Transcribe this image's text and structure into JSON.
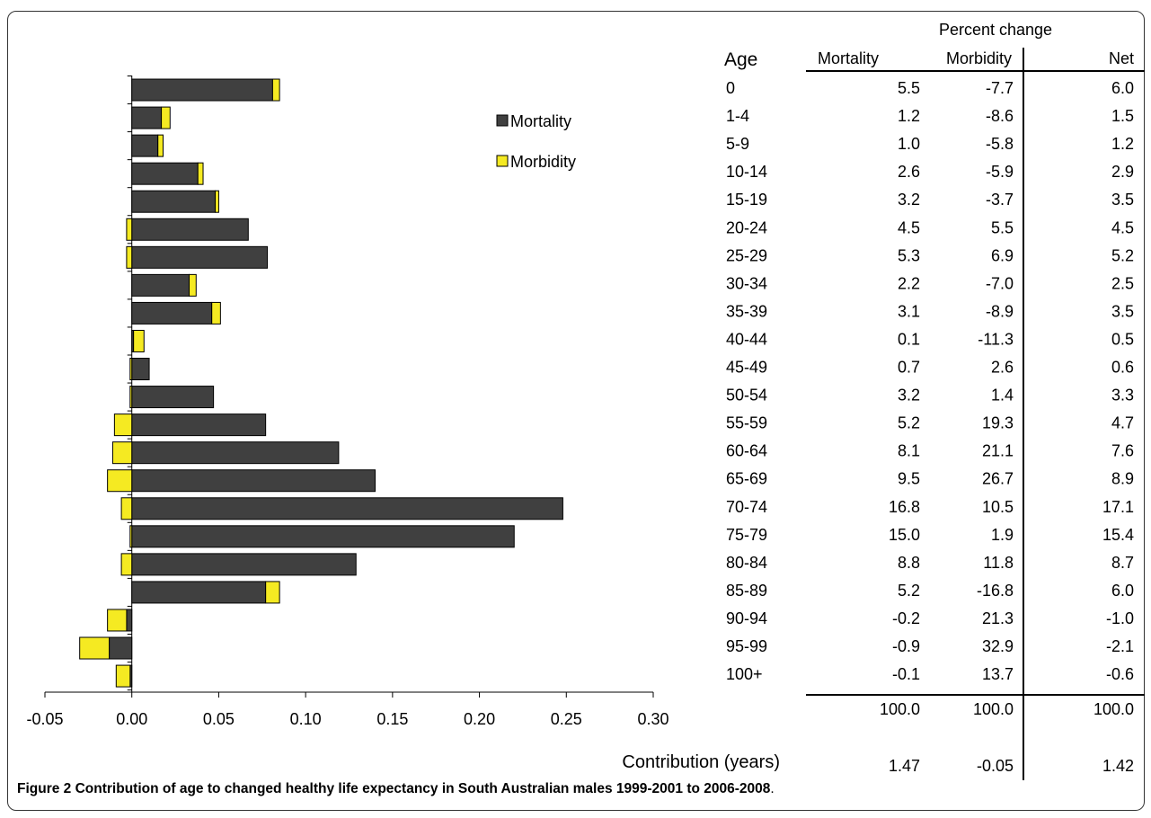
{
  "caption": {
    "label": "Figure 2",
    "text": "Contribution of age to changed healthy life expectancy in South Australian males 1999-2001 to 2006-2008",
    "suffix": "."
  },
  "colors": {
    "mortality": "#404040",
    "morbidity": "#f5ea22",
    "stroke": "#000000"
  },
  "chart_data": {
    "type": "bar",
    "orientation": "horizontal",
    "stacked": true,
    "title": "",
    "xlabel": "Contribution (years)",
    "xlim": [
      -0.05,
      0.3
    ],
    "xticks": [
      "-0.05",
      "0.00",
      "0.05",
      "0.10",
      "0.15",
      "0.20",
      "0.25",
      "0.30"
    ],
    "categories": [
      "0",
      "1-4",
      "5-9",
      "10-14",
      "15-19",
      "20-24",
      "25-29",
      "30-34",
      "35-39",
      "40-44",
      "45-49",
      "50-54",
      "55-59",
      "60-64",
      "65-69",
      "70-74",
      "75-79",
      "80-84",
      "85-89",
      "90-94",
      "95-99",
      "100+"
    ],
    "series": [
      {
        "name": "Mortality",
        "values": [
          0.081,
          0.017,
          0.015,
          0.038,
          0.048,
          0.067,
          0.078,
          0.033,
          0.046,
          0.001,
          0.01,
          0.047,
          0.077,
          0.119,
          0.14,
          0.248,
          0.22,
          0.129,
          0.077,
          -0.003,
          -0.013,
          -0.001
        ]
      },
      {
        "name": "Morbidity",
        "values": [
          0.004,
          0.005,
          0.003,
          0.003,
          0.002,
          -0.003,
          -0.003,
          0.004,
          0.005,
          0.006,
          -0.001,
          -0.001,
          -0.01,
          -0.011,
          -0.014,
          -0.006,
          -0.001,
          -0.006,
          0.008,
          -0.011,
          -0.017,
          -0.008
        ]
      }
    ],
    "legend": {
      "position": "top-right",
      "items": [
        "Mortality",
        "Morbidity"
      ]
    },
    "table": {
      "header_group": "Percent change",
      "age_header": "Age",
      "columns": [
        "Mortality",
        "Morbidity",
        "Net"
      ],
      "rows": [
        [
          "0",
          "5.5",
          "-7.7",
          "6.0"
        ],
        [
          "1-4",
          "1.2",
          "-8.6",
          "1.5"
        ],
        [
          "5-9",
          "1.0",
          "-5.8",
          "1.2"
        ],
        [
          "10-14",
          "2.6",
          "-5.9",
          "2.9"
        ],
        [
          "15-19",
          "3.2",
          "-3.7",
          "3.5"
        ],
        [
          "20-24",
          "4.5",
          "5.5",
          "4.5"
        ],
        [
          "25-29",
          "5.3",
          "6.9",
          "5.2"
        ],
        [
          "30-34",
          "2.2",
          "-7.0",
          "2.5"
        ],
        [
          "35-39",
          "3.1",
          "-8.9",
          "3.5"
        ],
        [
          "40-44",
          "0.1",
          "-11.3",
          "0.5"
        ],
        [
          "45-49",
          "0.7",
          "2.6",
          "0.6"
        ],
        [
          "50-54",
          "3.2",
          "1.4",
          "3.3"
        ],
        [
          "55-59",
          "5.2",
          "19.3",
          "4.7"
        ],
        [
          "60-64",
          "8.1",
          "21.1",
          "7.6"
        ],
        [
          "65-69",
          "9.5",
          "26.7",
          "8.9"
        ],
        [
          "70-74",
          "16.8",
          "10.5",
          "17.1"
        ],
        [
          "75-79",
          "15.0",
          "1.9",
          "15.4"
        ],
        [
          "80-84",
          "8.8",
          "11.8",
          "8.7"
        ],
        [
          "85-89",
          "5.2",
          "-16.8",
          "6.0"
        ],
        [
          "90-94",
          "-0.2",
          "21.3",
          "-1.0"
        ],
        [
          "95-99",
          "-0.9",
          "32.9",
          "-2.1"
        ],
        [
          "100+",
          "-0.1",
          "13.7",
          "-0.6"
        ]
      ],
      "totals": [
        "100.0",
        "100.0",
        "100.0"
      ],
      "contribution_label": "Contribution (years)",
      "contribution": [
        "1.47",
        "-0.05",
        "1.42"
      ]
    }
  }
}
